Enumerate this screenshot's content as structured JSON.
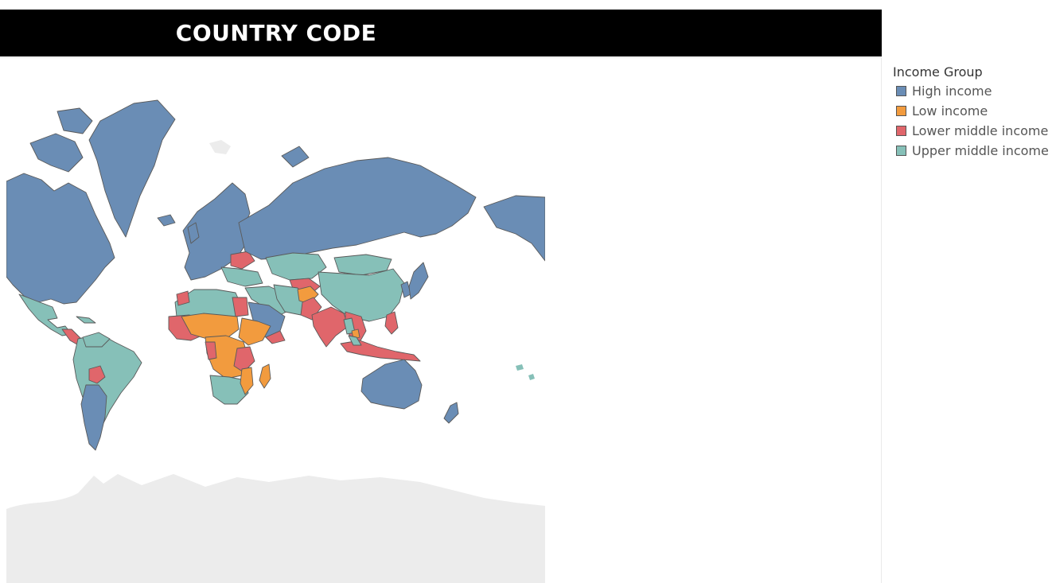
{
  "header": {
    "title": "COUNTRY CODE"
  },
  "legend": {
    "title": "Income Group",
    "items": [
      {
        "label": "High income",
        "color": "#6a8db5"
      },
      {
        "label": "Low income",
        "color": "#f29b3e"
      },
      {
        "label": "Lower middle income",
        "color": "#e0666b"
      },
      {
        "label": "Upper middle income",
        "color": "#86c0b8"
      }
    ]
  },
  "map": {
    "type": "choropleth",
    "projection": "mercator",
    "no_data_color": "#ececec",
    "border_color": "#5a5a5a"
  }
}
